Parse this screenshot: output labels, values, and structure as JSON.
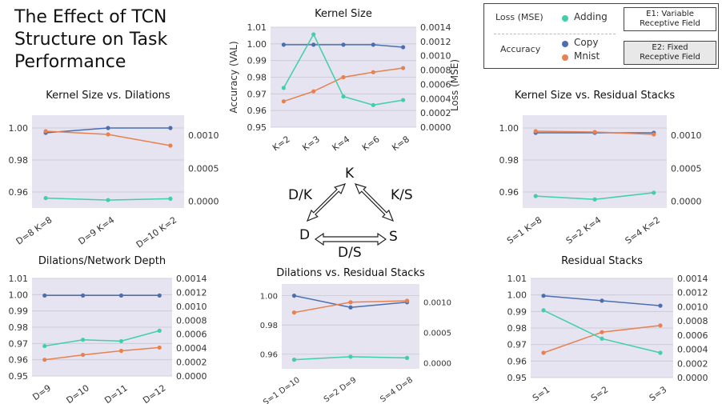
{
  "title_lines": [
    "The Effect of TCN",
    "Structure on Task",
    "Performance"
  ],
  "legend": {
    "loss_label": "Loss (MSE)",
    "accuracy_label": "Accuracy",
    "adding": "Adding",
    "copy": "Copy",
    "mnist": "Mnist",
    "e1": [
      "E1: Variable",
      "Receptive Field"
    ],
    "e2": [
      "E2: Fixed",
      "Receptive Field"
    ]
  },
  "colors": {
    "adding": "#3fcfa9",
    "copy": "#4a6fb0",
    "mnist": "#e8814f",
    "panel_bg": "#e6e4f0",
    "grid": "#c8c6d6"
  },
  "triangle": {
    "k": "K",
    "d": "D",
    "s": "S",
    "dk": "D/K",
    "ks": "K/S",
    "ds": "D/S"
  },
  "chart_data": [
    {
      "type": "line",
      "title": "Kernel Size vs. Dilations",
      "categories": [
        "D=8 K=8",
        "D=9 K=4",
        "D=10 K=2"
      ],
      "ylim": [
        0.95,
        1.008
      ],
      "y2lim": [
        -0.0001,
        0.0013
      ],
      "yticks": [
        0.96,
        0.98,
        1.0
      ],
      "ytick_labels": [
        "0.96",
        "0.98",
        "1.00"
      ],
      "y2ticks": [
        0.0,
        0.0005,
        0.001
      ],
      "y2tick_labels": [
        "0.0000",
        "0.0005",
        "0.0010"
      ],
      "series": [
        {
          "name": "Copy",
          "axis": "left",
          "values": [
            0.997,
            1.0,
            1.0
          ]
        },
        {
          "name": "Mnist",
          "axis": "left",
          "values": [
            0.998,
            0.996,
            0.989
          ]
        },
        {
          "name": "Adding",
          "axis": "right",
          "values": [
            5e-05,
            2e-05,
            4e-05
          ]
        }
      ]
    },
    {
      "type": "line",
      "title": "Kernel Size",
      "categories": [
        "K=2",
        "K=3",
        "K=4",
        "K=6",
        "K=8"
      ],
      "ylabel": "Accuracy (VAL)",
      "y2label": "Loss (MSE)",
      "ylim": [
        0.95,
        1.01
      ],
      "y2lim": [
        0.0,
        0.0014
      ],
      "yticks": [
        0.95,
        0.96,
        0.97,
        0.98,
        0.99,
        1.0,
        1.01
      ],
      "ytick_labels": [
        "0.95",
        "0.96",
        "0.97",
        "0.98",
        "0.99",
        "1.00",
        "1.01"
      ],
      "y2ticks": [
        0.0,
        0.0002,
        0.0004,
        0.0006,
        0.0008,
        0.001,
        0.0012,
        0.0014
      ],
      "y2tick_labels": [
        "0.0000",
        "0.0002",
        "0.0004",
        "0.0006",
        "0.0008",
        "0.0010",
        "0.0012",
        "0.0014"
      ],
      "series": [
        {
          "name": "Copy",
          "axis": "left",
          "values": [
            0.9995,
            0.9995,
            0.9995,
            0.9995,
            0.998
          ]
        },
        {
          "name": "Mnist",
          "axis": "left",
          "values": [
            0.9655,
            0.9715,
            0.98,
            0.983,
            0.9855
          ]
        },
        {
          "name": "Adding",
          "axis": "right",
          "values": [
            0.00055,
            0.0013,
            0.00043,
            0.00031,
            0.00038
          ]
        }
      ]
    },
    {
      "type": "line",
      "title": "Kernel Size vs. Residual Stacks",
      "categories": [
        "S=1 K=8",
        "S=2 K=4",
        "S=4 K=2"
      ],
      "ylim": [
        0.95,
        1.008
      ],
      "y2lim": [
        -0.0001,
        0.0013
      ],
      "yticks": [
        0.96,
        0.98,
        1.0
      ],
      "ytick_labels": [
        "0.96",
        "0.98",
        "1.00"
      ],
      "y2ticks": [
        0.0,
        0.0005,
        0.001
      ],
      "y2tick_labels": [
        "0.0000",
        "0.0005",
        "0.0010"
      ],
      "series": [
        {
          "name": "Copy",
          "axis": "left",
          "values": [
            0.997,
            0.997,
            0.997
          ]
        },
        {
          "name": "Mnist",
          "axis": "left",
          "values": [
            0.998,
            0.9975,
            0.996
          ]
        },
        {
          "name": "Adding",
          "axis": "right",
          "values": [
            8e-05,
            3e-05,
            0.00013
          ]
        }
      ]
    },
    {
      "type": "line",
      "title": "Dilations/Network Depth",
      "categories": [
        "D=9",
        "D=10",
        "D=11",
        "D=12"
      ],
      "ylim": [
        0.95,
        1.01
      ],
      "y2lim": [
        0.0,
        0.0014
      ],
      "yticks": [
        0.95,
        0.96,
        0.97,
        0.98,
        0.99,
        1.0,
        1.01
      ],
      "ytick_labels": [
        "0.95",
        "0.96",
        "0.97",
        "0.98",
        "0.99",
        "1.00",
        "1.01"
      ],
      "y2ticks": [
        0.0,
        0.0002,
        0.0004,
        0.0006,
        0.0008,
        0.001,
        0.0012,
        0.0014
      ],
      "y2tick_labels": [
        "0.0000",
        "0.0002",
        "0.0004",
        "0.0006",
        "0.0008",
        "0.0010",
        "0.0012",
        "0.0014"
      ],
      "series": [
        {
          "name": "Copy",
          "axis": "left",
          "values": [
            0.9995,
            0.9995,
            0.9995,
            0.9995
          ]
        },
        {
          "name": "Mnist",
          "axis": "left",
          "values": [
            0.96,
            0.963,
            0.9655,
            0.9675
          ]
        },
        {
          "name": "Adding",
          "axis": "right",
          "values": [
            0.00043,
            0.00052,
            0.0005,
            0.00065
          ]
        }
      ]
    },
    {
      "type": "line",
      "title": "Dilations vs. Residual Stacks",
      "categories": [
        "S=1 D=10",
        "S=2 D=9",
        "S=4 D=8"
      ],
      "ylim": [
        0.95,
        1.008
      ],
      "y2lim": [
        -0.0001,
        0.0013
      ],
      "yticks": [
        0.96,
        0.98,
        1.0
      ],
      "ytick_labels": [
        "0.96",
        "0.98",
        "1.00"
      ],
      "y2ticks": [
        0.0,
        0.0005,
        0.001
      ],
      "y2tick_labels": [
        "0.0000",
        "0.0005",
        "0.0010"
      ],
      "series": [
        {
          "name": "Copy",
          "axis": "left",
          "values": [
            1.0,
            0.992,
            0.9955
          ]
        },
        {
          "name": "Mnist",
          "axis": "left",
          "values": [
            0.9885,
            0.9955,
            0.9965
          ]
        },
        {
          "name": "Adding",
          "axis": "right",
          "values": [
            5e-05,
            0.0001,
            8e-05
          ]
        }
      ]
    },
    {
      "type": "line",
      "title": "Residual Stacks",
      "categories": [
        "S=1",
        "S=2",
        "S=3"
      ],
      "ylim": [
        0.95,
        1.01
      ],
      "y2lim": [
        0.0,
        0.0014
      ],
      "yticks": [
        0.95,
        0.96,
        0.97,
        0.98,
        0.99,
        1.0,
        1.01
      ],
      "ytick_labels": [
        "0.95",
        "0.96",
        "0.97",
        "0.98",
        "0.99",
        "1.00",
        "1.01"
      ],
      "y2ticks": [
        0.0,
        0.0002,
        0.0004,
        0.0006,
        0.0008,
        0.001,
        0.0012,
        0.0014
      ],
      "y2tick_labels": [
        "0.0000",
        "0.0002",
        "0.0004",
        "0.0006",
        "0.0008",
        "0.0010",
        "0.0012",
        "0.0014"
      ],
      "series": [
        {
          "name": "Copy",
          "axis": "left",
          "values": [
            0.9995,
            0.9965,
            0.9935
          ]
        },
        {
          "name": "Mnist",
          "axis": "left",
          "values": [
            0.965,
            0.9775,
            0.9815
          ]
        },
        {
          "name": "Adding",
          "axis": "right",
          "values": [
            0.00095,
            0.00055,
            0.00035
          ]
        }
      ]
    }
  ]
}
